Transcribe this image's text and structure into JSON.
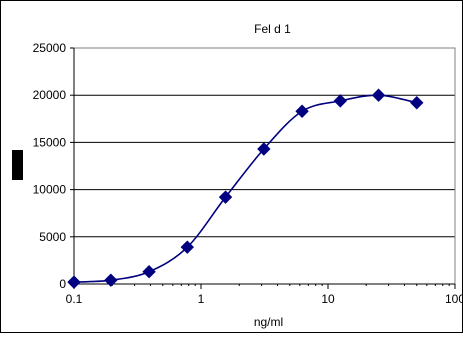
{
  "chart_data": {
    "type": "line",
    "title": "Fel d 1",
    "xlabel": "ng/ml",
    "ylabel": "",
    "x_scale": "log",
    "xlim": [
      0.1,
      100
    ],
    "ylim": [
      0,
      25000
    ],
    "grid": {
      "y_major": true,
      "x_major": false
    },
    "legend": "none",
    "x_ticks": [
      "0.1",
      "1",
      "10",
      "100"
    ],
    "y_ticks": [
      "0",
      "5000",
      "10000",
      "15000",
      "20000",
      "25000"
    ],
    "series": [
      {
        "color": "#000080",
        "marker": "diamond",
        "smoothed": true,
        "x": [
          0.1,
          0.195,
          0.39,
          0.78,
          1.56,
          3.125,
          6.25,
          12.5,
          25,
          50
        ],
        "y": [
          200,
          400,
          1300,
          3900,
          9200,
          14300,
          18300,
          19400,
          20000,
          19200
        ]
      }
    ]
  }
}
